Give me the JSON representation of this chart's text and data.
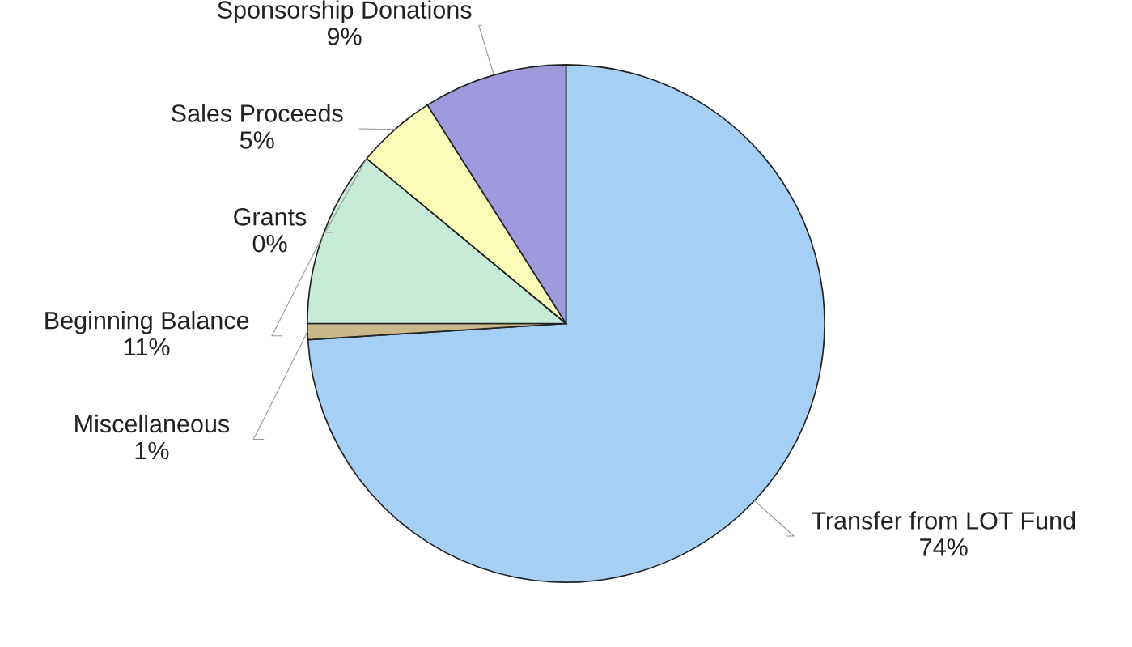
{
  "chart_data": {
    "type": "pie",
    "categories": [
      "Transfer from LOT Fund",
      "Miscellaneous",
      "Beginning Balance",
      "Grants",
      "Sales Proceeds",
      "Sponsorship Donations"
    ],
    "values": [
      74,
      1,
      11,
      0,
      5,
      9
    ],
    "colors": [
      "#a6cff5",
      "#c8b88a",
      "#c6ecd8",
      "#f0c0c0",
      "#fafcb8",
      "#9e98dc"
    ],
    "value_labels": [
      "74%",
      "1%",
      "11%",
      "0%",
      "5%",
      "9%"
    ]
  }
}
